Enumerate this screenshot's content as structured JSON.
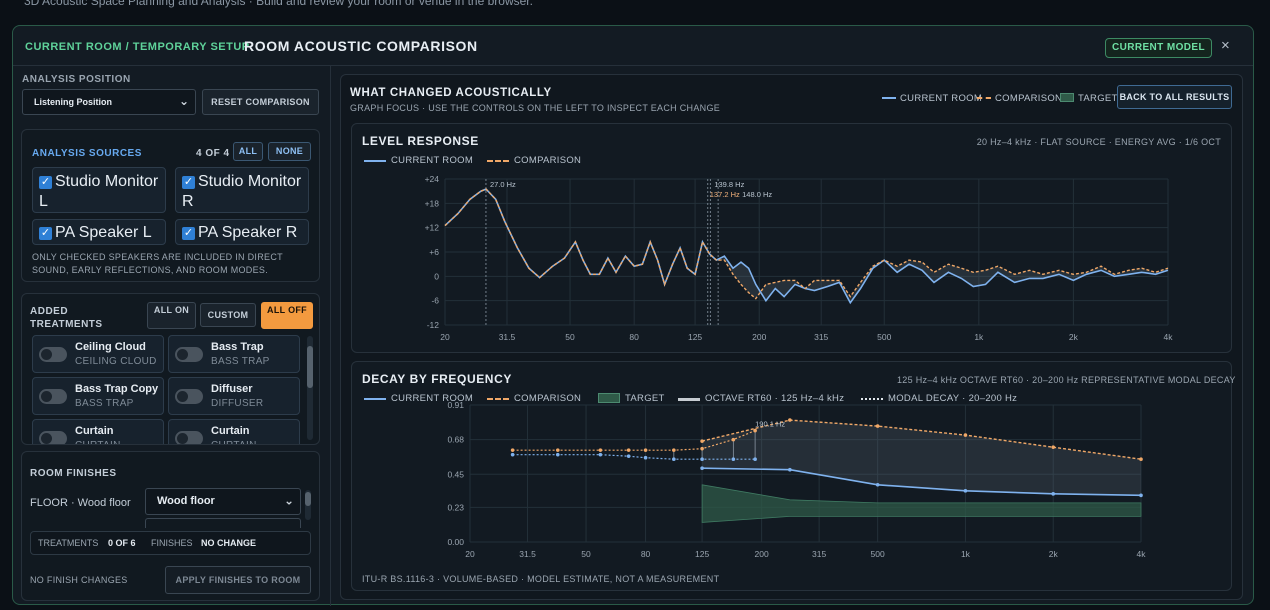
{
  "page": {
    "topline": "3D Acoustic Space Planning and Analysis · Build and review your room or venue in the browser."
  },
  "header": {
    "crumb": "CURRENT ROOM / TEMPORARY SETUP",
    "title": "ROOM ACOUSTIC COMPARISON",
    "current_model": "CURRENT MODEL",
    "close": "×"
  },
  "left": {
    "analysis_position": {
      "label": "ANALYSIS POSITION",
      "value": "Listening Position",
      "reset": "RESET COMPARISON"
    },
    "sources": {
      "label": "ANALYSIS SOURCES",
      "count": "4 OF 4",
      "all": "ALL",
      "none": "NONE",
      "items": [
        {
          "label": "Studio Monitor L",
          "checked": true
        },
        {
          "label": "Studio Monitor R",
          "checked": true
        },
        {
          "label": "PA Speaker L",
          "checked": true
        },
        {
          "label": "PA Speaker R",
          "checked": true
        }
      ],
      "note": "ONLY CHECKED SPEAKERS ARE INCLUDED IN DIRECT SOUND, EARLY REFLECTIONS, AND ROOM MODES."
    },
    "treatments": {
      "label": "ADDED TREATMENTS",
      "all_on": "ALL ON",
      "custom": "CUSTOM",
      "all_off": "ALL OFF",
      "items": [
        {
          "name": "Ceiling Cloud",
          "type": "CEILING CLOUD"
        },
        {
          "name": "Bass Trap",
          "type": "BASS TRAP"
        },
        {
          "name": "Bass Trap Copy",
          "type": "BASS TRAP"
        },
        {
          "name": "Diffuser",
          "type": "DIFFUSER"
        },
        {
          "name": "Curtain",
          "type": "CURTAIN"
        },
        {
          "name": "Curtain",
          "type": "CURTAIN"
        }
      ]
    },
    "finishes": {
      "label": "ROOM FINISHES",
      "floor_label": "FLOOR · Wood floor",
      "floor_value": "Wood floor",
      "treat_label": "TREATMENTS",
      "treat_value": "0 OF 6",
      "fin_label": "FINISHES",
      "fin_value": "NO CHANGE",
      "no_changes": "NO FINISH CHANGES",
      "apply": "APPLY FINISHES TO ROOM"
    }
  },
  "main": {
    "title": "WHAT CHANGED ACOUSTICALLY",
    "subtitle": "GRAPH FOCUS · USE THE CONTROLS ON THE LEFT TO INSPECT EACH CHANGE",
    "legend": [
      "CURRENT ROOM",
      "COMPARISON",
      "TARGET"
    ],
    "back": "BACK TO ALL RESULTS"
  },
  "colors": {
    "current": "#7fb2ee",
    "comparison": "#f0a868",
    "target": "#3e6e5a",
    "accent": "#5fd29a",
    "orange_button": "#f39a3f"
  },
  "chart_data": [
    {
      "type": "line",
      "title": "LEVEL RESPONSE",
      "subtitle": "20 Hz–4 kHz · FLAT SOURCE · ENERGY AVG · 1/6 OCT",
      "legend": [
        "CURRENT ROOM",
        "COMPARISON"
      ],
      "xscale": "log",
      "xticks": [
        "20",
        "31.5",
        "50",
        "80",
        "125",
        "200",
        "315",
        "500",
        "1k",
        "2k",
        "4k"
      ],
      "yticks": [
        "+24",
        "+18",
        "+12",
        "+6",
        "0",
        "-6",
        "-12"
      ],
      "ylim": [
        -12,
        24
      ],
      "markers": [
        "27.0 Hz",
        "139.8 Hz",
        "137.2 Hz",
        "148.0 Hz"
      ],
      "marker_freqs": [
        27.0,
        139.8,
        137.2,
        148.0
      ],
      "x": [
        20,
        22,
        24,
        26,
        27,
        29,
        31,
        34,
        37,
        40,
        44,
        48,
        52,
        55,
        58,
        62,
        66,
        70,
        75,
        80,
        85,
        90,
        95,
        100,
        106,
        112,
        118,
        125,
        132,
        139,
        146,
        155,
        165,
        175,
        185,
        195,
        210,
        225,
        240,
        260,
        280,
        300,
        330,
        360,
        390,
        420,
        460,
        500,
        550,
        600,
        660,
        720,
        800,
        880,
        960,
        1050,
        1150,
        1300,
        1450,
        1600,
        1800,
        2000,
        2200,
        2450,
        2700,
        3000,
        3300,
        3650,
        4000
      ],
      "series": [
        {
          "name": "CURRENT ROOM",
          "values": [
            12.5,
            15.5,
            19.0,
            21.0,
            21.5,
            19.0,
            13.5,
            7.0,
            2.0,
            -0.3,
            2.5,
            4.5,
            8.5,
            4.0,
            0.5,
            0.5,
            4.5,
            1.0,
            5.0,
            2.5,
            3.0,
            8.5,
            4.0,
            -2.0,
            3.0,
            7.0,
            2.0,
            0.5,
            8.5,
            5.5,
            4.0,
            5.0,
            2.0,
            3.5,
            2.0,
            -2.0,
            -6.0,
            -3.0,
            -5.0,
            -2.0,
            -3.0,
            -3.5,
            -2.5,
            -1.5,
            -6.5,
            -3.0,
            2.0,
            4.0,
            1.0,
            3.0,
            1.5,
            -1.5,
            1.0,
            -0.5,
            -2.5,
            -2.0,
            1.0,
            -1.5,
            -0.5,
            -0.5,
            0.5,
            -1.0,
            0.5,
            1.5,
            0.0,
            0.5,
            1.0,
            0.5,
            1.5
          ]
        },
        {
          "name": "COMPARISON",
          "values": [
            12.5,
            15.5,
            19.0,
            21.0,
            21.5,
            19.0,
            13.5,
            7.0,
            2.0,
            -0.3,
            2.5,
            4.5,
            8.5,
            4.0,
            0.5,
            0.5,
            4.5,
            1.0,
            5.0,
            2.5,
            3.0,
            8.5,
            4.0,
            -2.0,
            3.0,
            7.0,
            2.0,
            0.5,
            8.5,
            5.5,
            4.0,
            4.0,
            0.5,
            -2.0,
            -4.0,
            -5.5,
            -2.0,
            -1.5,
            -1.0,
            -1.0,
            -3.0,
            -1.0,
            -1.0,
            -1.0,
            -5.0,
            -1.5,
            2.5,
            4.0,
            2.5,
            4.0,
            3.5,
            1.0,
            3.0,
            2.0,
            1.0,
            1.5,
            2.5,
            0.5,
            1.5,
            0.5,
            1.5,
            0.5,
            1.0,
            2.5,
            0.5,
            1.5,
            2.0,
            1.0,
            2.0
          ]
        }
      ]
    },
    {
      "type": "line",
      "title": "DECAY BY FREQUENCY",
      "subtitle": "125 Hz–4 kHz OCTAVE RT60 · 20–200 Hz REPRESENTATIVE MODAL DECAY",
      "legend": [
        "CURRENT ROOM",
        "COMPARISON",
        "TARGET",
        "OCTAVE RT60 · 125 Hz–4 kHz",
        "MODAL DECAY · 20–200 Hz"
      ],
      "footer": "ITU-R BS.1116-3 · VOLUME-BASED · MODEL ESTIMATE, NOT A MEASUREMENT",
      "xscale": "log",
      "xticks": [
        "20",
        "31.5",
        "50",
        "80",
        "125",
        "200",
        "315",
        "500",
        "1k",
        "2k",
        "4k"
      ],
      "yticks": [
        "0.91",
        "0.68",
        "0.45",
        "0.23",
        "0.00"
      ],
      "ylim": [
        0,
        0.91
      ],
      "annotation": "190.1 Hz",
      "modal_x": [
        28,
        40,
        56,
        70,
        80,
        100,
        125,
        160,
        190
      ],
      "modal_current": [
        0.58,
        0.58,
        0.58,
        0.57,
        0.56,
        0.55,
        0.55,
        0.55,
        0.55
      ],
      "modal_comparison": [
        0.61,
        0.61,
        0.61,
        0.61,
        0.61,
        0.61,
        0.62,
        0.68,
        0.74
      ],
      "octave_x": [
        125,
        250,
        500,
        1000,
        2000,
        4000
      ],
      "octave_current": [
        0.49,
        0.48,
        0.38,
        0.34,
        0.32,
        0.31
      ],
      "octave_comparison": [
        0.67,
        0.81,
        0.77,
        0.71,
        0.63,
        0.55
      ],
      "target_upper": [
        0.38,
        0.28,
        0.26,
        0.26,
        0.26,
        0.26
      ],
      "target_lower": [
        0.13,
        0.17,
        0.17,
        0.17,
        0.17,
        0.17
      ]
    }
  ]
}
